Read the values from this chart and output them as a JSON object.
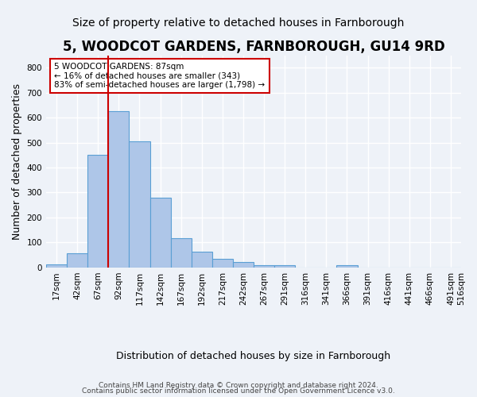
{
  "title": "5, WOODCOT GARDENS, FARNBOROUGH, GU14 9RD",
  "subtitle": "Size of property relative to detached houses in Farnborough",
  "xlabel": "Distribution of detached houses by size in Farnborough",
  "ylabel": "Number of detached properties",
  "bar_values": [
    13,
    55,
    450,
    625,
    505,
    280,
    118,
    62,
    35,
    22,
    10,
    10,
    0,
    0,
    8,
    0,
    0,
    0,
    0,
    0
  ],
  "bin_labels": [
    "17sqm",
    "42sqm",
    "67sqm",
    "92sqm",
    "117sqm",
    "142sqm",
    "167sqm",
    "192sqm",
    "217sqm",
    "242sqm",
    "267sqm",
    "291sqm",
    "316sqm",
    "341sqm",
    "366sqm",
    "391sqm",
    "416sqm",
    "441sqm",
    "466sqm",
    "491sqm"
  ],
  "extra_label": "516sqm",
  "bar_color": "#aec6e8",
  "bar_edge_color": "#5a9fd4",
  "property_size_sqm": 87,
  "vline_x": 2.5,
  "vline_color": "#cc0000",
  "annotation_text": "5 WOODCOT GARDENS: 87sqm\n← 16% of detached houses are smaller (343)\n83% of semi-detached houses are larger (1,798) →",
  "annotation_box_color": "#ffffff",
  "annotation_box_edge": "#cc0000",
  "ylim": [
    0,
    850
  ],
  "yticks": [
    0,
    100,
    200,
    300,
    400,
    500,
    600,
    700,
    800
  ],
  "footer_line1": "Contains HM Land Registry data © Crown copyright and database right 2024.",
  "footer_line2": "Contains public sector information licensed under the Open Government Licence v3.0.",
  "bg_color": "#eef2f8",
  "plot_bg_color": "#eef2f8",
  "grid_color": "#ffffff",
  "title_fontsize": 12,
  "subtitle_fontsize": 10,
  "tick_fontsize": 7.5,
  "ylabel_fontsize": 9,
  "xlabel_fontsize": 9
}
